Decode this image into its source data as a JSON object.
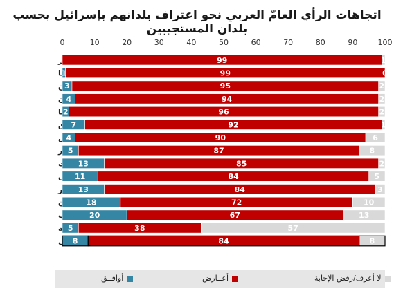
{
  "chart_data": {
    "type": "bar",
    "orientation": "horizontal",
    "stacked": true,
    "title": "اتجاهات الرأي العامّ العربي نحو اعتراف بلدانهم بإسرائيل بحسب بلدان المستجيبين",
    "xlim": [
      0,
      100
    ],
    "xticks": [
      0,
      10,
      20,
      30,
      40,
      50,
      60,
      70,
      80,
      90,
      100
    ],
    "categories": [
      "الجزائر",
      "موريتانيا",
      "فلسطين",
      "الأردن",
      "ليبيا",
      "العراق",
      "تونس",
      "قطر",
      "الكويت",
      "لبنان",
      "مصر",
      "السودان",
      "المغرب",
      "السعودية",
      "المعدل"
    ],
    "series": [
      {
        "name": "أوافــق",
        "color": "#3585a5",
        "values": [
          0,
          1,
          3,
          4,
          2,
          7,
          4,
          5,
          13,
          11,
          13,
          18,
          20,
          5,
          8
        ]
      },
      {
        "name": "أعــارض",
        "color": "#c00000",
        "values": [
          99,
          99,
          95,
          94,
          96,
          92,
          90,
          87,
          85,
          84,
          84,
          72,
          67,
          38,
          84
        ]
      },
      {
        "name": "لا أعرف/رفض الإجابة",
        "color": "#d9d9d9",
        "values": [
          1,
          0,
          2,
          2,
          2,
          1,
          6,
          8,
          2,
          5,
          3,
          10,
          13,
          57,
          8
        ]
      }
    ],
    "legend_position": "bottom",
    "grid": false
  }
}
